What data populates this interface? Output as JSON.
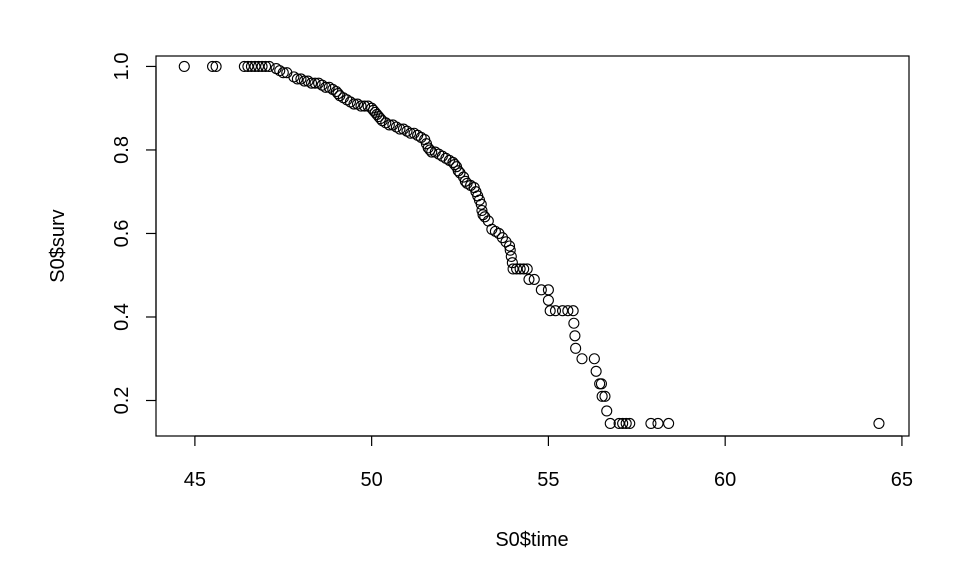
{
  "chart_data": {
    "type": "scatter",
    "xlabel": "S0$time",
    "ylabel": "S0$surv",
    "xlim": [
      43.9,
      65.2
    ],
    "ylim": [
      0.115,
      1.025
    ],
    "xticks": [
      "45",
      "50",
      "55",
      "60",
      "65"
    ],
    "yticks": [
      "0.2",
      "0.4",
      "0.6",
      "0.8",
      "1.0"
    ],
    "marker": "open-circle",
    "marker_color": "#000000",
    "background": "#ffffff",
    "points": [
      [
        44.7,
        1.0
      ],
      [
        45.5,
        1.0
      ],
      [
        45.6,
        1.0
      ],
      [
        46.4,
        1.0
      ],
      [
        46.5,
        1.0
      ],
      [
        46.6,
        1.0
      ],
      [
        46.7,
        1.0
      ],
      [
        46.8,
        1.0
      ],
      [
        46.9,
        1.0
      ],
      [
        47.0,
        1.0
      ],
      [
        47.1,
        1.0
      ],
      [
        47.3,
        0.995
      ],
      [
        47.4,
        0.99
      ],
      [
        47.5,
        0.985
      ],
      [
        47.6,
        0.985
      ],
      [
        47.8,
        0.975
      ],
      [
        47.9,
        0.97
      ],
      [
        48.0,
        0.97
      ],
      [
        48.1,
        0.965
      ],
      [
        48.2,
        0.965
      ],
      [
        48.3,
        0.96
      ],
      [
        48.4,
        0.96
      ],
      [
        48.5,
        0.96
      ],
      [
        48.6,
        0.955
      ],
      [
        48.7,
        0.95
      ],
      [
        48.8,
        0.95
      ],
      [
        48.9,
        0.945
      ],
      [
        49.0,
        0.94
      ],
      [
        49.05,
        0.935
      ],
      [
        49.1,
        0.93
      ],
      [
        49.2,
        0.925
      ],
      [
        49.3,
        0.92
      ],
      [
        49.4,
        0.915
      ],
      [
        49.5,
        0.91
      ],
      [
        49.6,
        0.91
      ],
      [
        49.7,
        0.905
      ],
      [
        49.8,
        0.905
      ],
      [
        49.9,
        0.905
      ],
      [
        50.0,
        0.9
      ],
      [
        50.05,
        0.895
      ],
      [
        50.1,
        0.89
      ],
      [
        50.15,
        0.885
      ],
      [
        50.2,
        0.88
      ],
      [
        50.25,
        0.875
      ],
      [
        50.3,
        0.87
      ],
      [
        50.4,
        0.865
      ],
      [
        50.5,
        0.86
      ],
      [
        50.6,
        0.86
      ],
      [
        50.7,
        0.855
      ],
      [
        50.8,
        0.85
      ],
      [
        50.9,
        0.85
      ],
      [
        51.0,
        0.845
      ],
      [
        51.1,
        0.84
      ],
      [
        51.2,
        0.84
      ],
      [
        51.3,
        0.835
      ],
      [
        51.4,
        0.83
      ],
      [
        51.5,
        0.825
      ],
      [
        51.55,
        0.815
      ],
      [
        51.6,
        0.805
      ],
      [
        51.65,
        0.8
      ],
      [
        51.7,
        0.795
      ],
      [
        51.8,
        0.795
      ],
      [
        51.9,
        0.79
      ],
      [
        52.0,
        0.785
      ],
      [
        52.1,
        0.78
      ],
      [
        52.2,
        0.775
      ],
      [
        52.3,
        0.77
      ],
      [
        52.35,
        0.765
      ],
      [
        52.4,
        0.76
      ],
      [
        52.45,
        0.75
      ],
      [
        52.5,
        0.745
      ],
      [
        52.6,
        0.735
      ],
      [
        52.65,
        0.725
      ],
      [
        52.7,
        0.72
      ],
      [
        52.8,
        0.715
      ],
      [
        52.9,
        0.71
      ],
      [
        52.95,
        0.7
      ],
      [
        53.0,
        0.69
      ],
      [
        53.05,
        0.68
      ],
      [
        53.1,
        0.67
      ],
      [
        53.12,
        0.655
      ],
      [
        53.15,
        0.645
      ],
      [
        53.2,
        0.64
      ],
      [
        53.3,
        0.63
      ],
      [
        53.4,
        0.61
      ],
      [
        53.5,
        0.605
      ],
      [
        53.6,
        0.6
      ],
      [
        53.7,
        0.59
      ],
      [
        53.8,
        0.58
      ],
      [
        53.9,
        0.57
      ],
      [
        53.92,
        0.56
      ],
      [
        53.95,
        0.545
      ],
      [
        53.98,
        0.53
      ],
      [
        54.0,
        0.515
      ],
      [
        54.1,
        0.515
      ],
      [
        54.2,
        0.515
      ],
      [
        54.3,
        0.515
      ],
      [
        54.4,
        0.515
      ],
      [
        54.45,
        0.49
      ],
      [
        54.6,
        0.49
      ],
      [
        54.8,
        0.465
      ],
      [
        55.0,
        0.465
      ],
      [
        55.0,
        0.44
      ],
      [
        55.05,
        0.415
      ],
      [
        55.2,
        0.415
      ],
      [
        55.4,
        0.415
      ],
      [
        55.55,
        0.415
      ],
      [
        55.7,
        0.415
      ],
      [
        55.72,
        0.385
      ],
      [
        55.75,
        0.355
      ],
      [
        55.77,
        0.325
      ],
      [
        55.95,
        0.3
      ],
      [
        56.3,
        0.3
      ],
      [
        56.35,
        0.27
      ],
      [
        56.45,
        0.24
      ],
      [
        56.5,
        0.24
      ],
      [
        56.52,
        0.21
      ],
      [
        56.6,
        0.21
      ],
      [
        56.65,
        0.175
      ],
      [
        56.75,
        0.145
      ],
      [
        57.0,
        0.145
      ],
      [
        57.1,
        0.145
      ],
      [
        57.2,
        0.145
      ],
      [
        57.3,
        0.145
      ],
      [
        57.9,
        0.145
      ],
      [
        58.1,
        0.145
      ],
      [
        58.4,
        0.145
      ],
      [
        64.35,
        0.145
      ]
    ]
  }
}
